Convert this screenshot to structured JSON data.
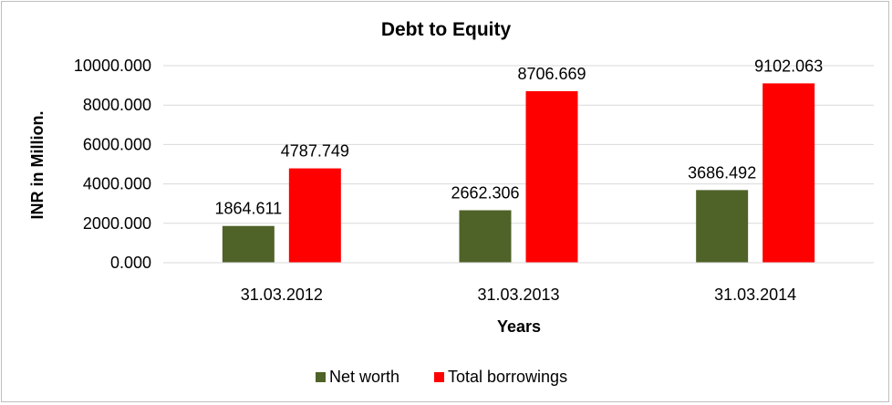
{
  "chart_data": {
    "type": "bar",
    "title": "Debt to Equity",
    "xlabel": "Years",
    "ylabel": "INR in Million.",
    "categories": [
      "31.03.2012",
      "31.03.2013",
      "31.03.2014"
    ],
    "series": [
      {
        "name": "Net worth",
        "color": "#4f6228",
        "values": [
          1864.611,
          2662.306,
          3686.492
        ],
        "labels": [
          "1864.611",
          "2662.306",
          "3686.492"
        ]
      },
      {
        "name": "Total borrowings",
        "color": "#ff0000",
        "values": [
          4787.749,
          8706.669,
          9102.063
        ],
        "labels": [
          "4787.749",
          "8706.669",
          "9102.063"
        ]
      }
    ],
    "ylim": [
      0,
      10000
    ],
    "yticks": [
      0,
      2000,
      4000,
      6000,
      8000,
      10000
    ],
    "ytick_labels": [
      "0.000",
      "2000.000",
      "4000.000",
      "6000.000",
      "8000.000",
      "10000.000"
    ],
    "grid": true,
    "legend_position": "bottom"
  }
}
